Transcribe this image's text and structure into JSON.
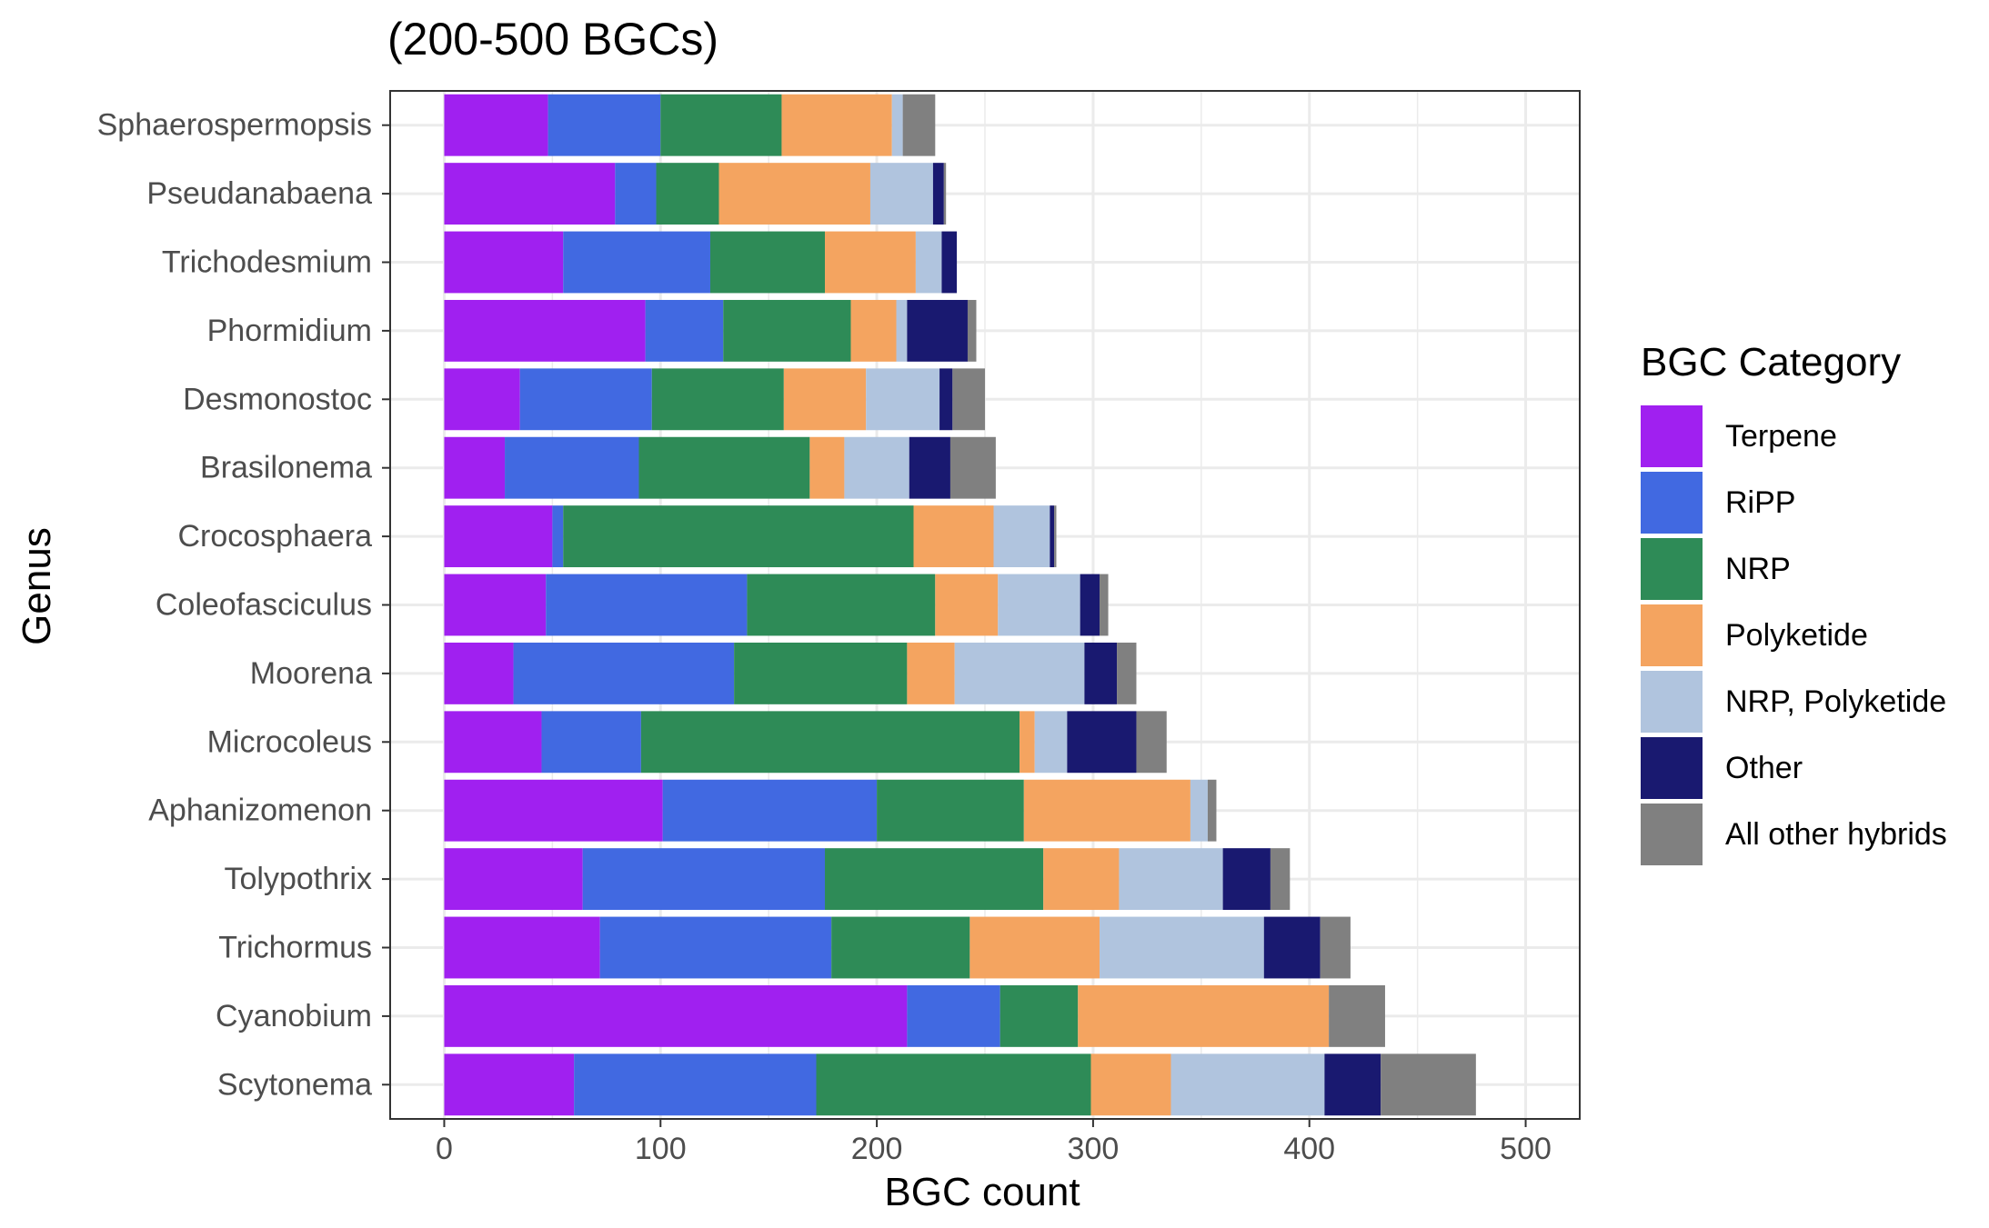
{
  "chart_data": {
    "type": "bar",
    "orientation": "horizontal",
    "stacked": true,
    "title": "(200-500 BGCs)",
    "xlabel": "BGC count",
    "ylabel": "Genus",
    "xlim": [
      -25,
      525
    ],
    "xticks": [
      0,
      100,
      200,
      300,
      400,
      500
    ],
    "xtick_labels": [
      "0",
      "100",
      "200",
      "300",
      "400",
      "500"
    ],
    "grid": true,
    "legend_position": "right",
    "legend_title": "BGC Category",
    "categories": [
      "Sphaerospermopsis",
      "Pseudanabaena",
      "Trichodesmium",
      "Phormidium",
      "Desmonostoc",
      "Brasilonema",
      "Crocosphaera",
      "Coleofasciculus",
      "Moorena",
      "Microcoleus",
      "Aphanizomenon",
      "Tolypothrix",
      "Trichormus",
      "Cyanobium",
      "Scytonema"
    ],
    "series": [
      {
        "name": "Terpene",
        "color": "#A020F0",
        "values": [
          48,
          79,
          55,
          93,
          35,
          28,
          50,
          47,
          32,
          45,
          101,
          64,
          72,
          214,
          60
        ]
      },
      {
        "name": "RiPP",
        "color": "#4169E1",
        "values": [
          52,
          19,
          68,
          36,
          61,
          62,
          5,
          93,
          102,
          46,
          99,
          112,
          107,
          43,
          112
        ]
      },
      {
        "name": "NRP",
        "color": "#2E8B57",
        "values": [
          56,
          29,
          53,
          59,
          61,
          79,
          162,
          87,
          80,
          175,
          68,
          101,
          64,
          36,
          127
        ]
      },
      {
        "name": "Polyketide",
        "color": "#F4A460",
        "values": [
          51,
          70,
          42,
          21,
          38,
          16,
          37,
          29,
          22,
          7,
          77,
          35,
          60,
          116,
          37
        ]
      },
      {
        "name": "NRP, Polyketide",
        "color": "#B0C4DE",
        "values": [
          5,
          29,
          12,
          5,
          34,
          30,
          26,
          38,
          60,
          15,
          8,
          48,
          76,
          0,
          71
        ]
      },
      {
        "name": "Other",
        "color": "#191970",
        "values": [
          0,
          5,
          7,
          28,
          6,
          19,
          2,
          9,
          15,
          32,
          0,
          22,
          26,
          0,
          26
        ]
      },
      {
        "name": "All other hybrids",
        "color": "#808080",
        "values": [
          15,
          1,
          0,
          4,
          15,
          21,
          1,
          4,
          9,
          14,
          4,
          9,
          14,
          26,
          44
        ]
      }
    ]
  }
}
